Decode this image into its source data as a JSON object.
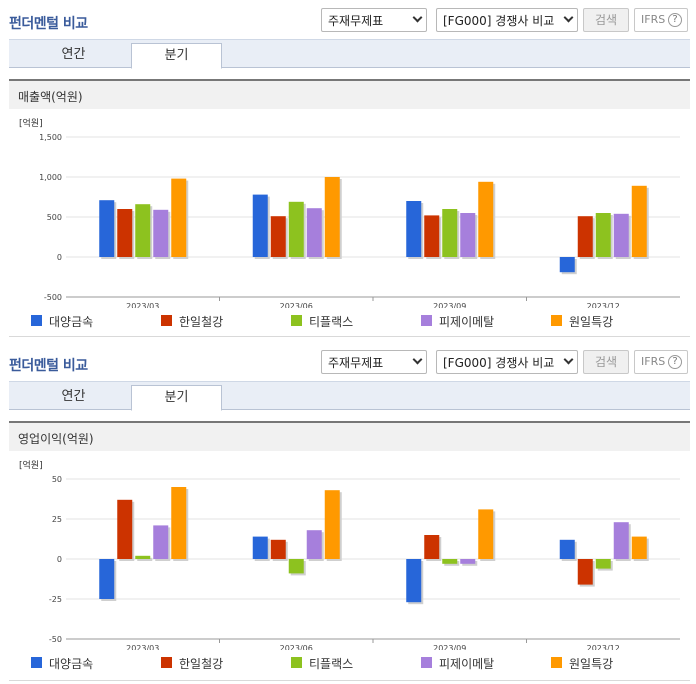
{
  "sections": [
    {
      "title": "펀더멘털 비교",
      "select1": "주재무제표",
      "select2": "[FG000] 경쟁사 비교",
      "search_label": "검색",
      "ifrs_label": "IFRS",
      "ifrs_help": "?",
      "tabs": [
        {
          "label": "연간"
        },
        {
          "label": "분기"
        }
      ],
      "active_tab": 1,
      "panel_title": "매출액(억원)"
    },
    {
      "title": "펀더멘털 비교",
      "select1": "주재무제표",
      "select2": "[FG000] 경쟁사 비교",
      "search_label": "검색",
      "ifrs_label": "IFRS",
      "ifrs_help": "?",
      "tabs": [
        {
          "label": "연간"
        },
        {
          "label": "분기"
        }
      ],
      "active_tab": 1,
      "panel_title": "영업이익(억원)"
    }
  ],
  "colors": [
    "#2766d9",
    "#cc3300",
    "#8dc21f",
    "#a67fdc",
    "#ff9900"
  ],
  "chart_data": [
    {
      "type": "bar",
      "unit_label": "[억원]",
      "categories": [
        "2023/03",
        "2023/06",
        "2023/09",
        "2023/12"
      ],
      "ylim": [
        -500,
        1500
      ],
      "yticks": [
        -500,
        0,
        500,
        1000,
        1500
      ],
      "ytick_labels": [
        "-500",
        "0",
        "500",
        "1,000",
        "1,500"
      ],
      "grid": true,
      "legend_position": "bottom",
      "series": [
        {
          "name": "대양금속",
          "values": [
            710,
            780,
            700,
            -190
          ]
        },
        {
          "name": "한일철강",
          "values": [
            600,
            510,
            520,
            510
          ]
        },
        {
          "name": "티플랙스",
          "values": [
            660,
            690,
            600,
            550
          ]
        },
        {
          "name": "피제이메탈",
          "values": [
            590,
            610,
            550,
            540
          ]
        },
        {
          "name": "원일특강",
          "values": [
            980,
            1000,
            940,
            890
          ]
        }
      ]
    },
    {
      "type": "bar",
      "unit_label": "[억원]",
      "categories": [
        "2023/03",
        "2023/06",
        "2023/09",
        "2023/12"
      ],
      "ylim": [
        -50,
        50
      ],
      "yticks": [
        -50,
        -25,
        0,
        25,
        50
      ],
      "ytick_labels": [
        "-50",
        "-25",
        "0",
        "25",
        "50"
      ],
      "grid": true,
      "legend_position": "bottom",
      "series": [
        {
          "name": "대양금속",
          "values": [
            -25,
            14,
            -27,
            12
          ]
        },
        {
          "name": "한일철강",
          "values": [
            37,
            12,
            15,
            -16
          ]
        },
        {
          "name": "티플랙스",
          "values": [
            2,
            -9,
            -3,
            -6
          ]
        },
        {
          "name": "피제이메탈",
          "values": [
            21,
            18,
            -3,
            23
          ]
        },
        {
          "name": "원일특강",
          "values": [
            45,
            43,
            31,
            14
          ]
        }
      ]
    }
  ]
}
